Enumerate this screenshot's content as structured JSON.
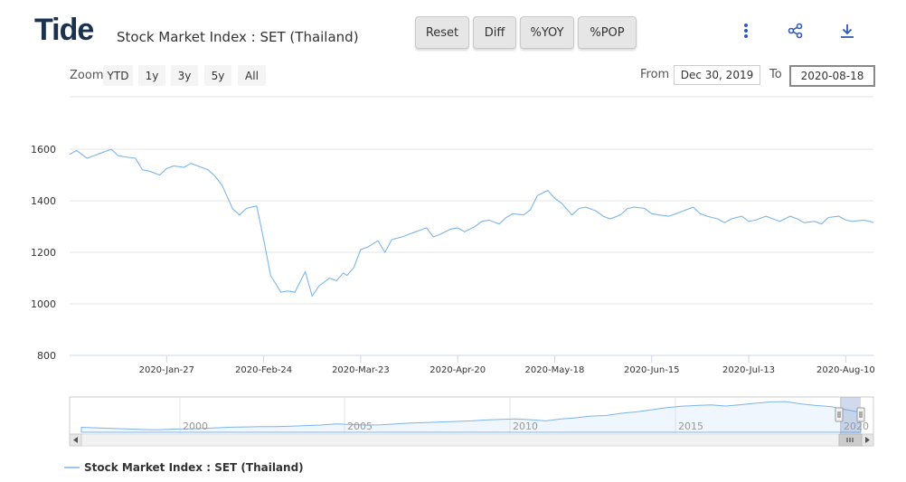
{
  "header": {
    "logo": "Tide",
    "title": "Stock Market Index : SET (Thailand)",
    "buttons": {
      "reset": "Reset",
      "diff": "Diff",
      "yoy": "%YOY",
      "pop": "%POP"
    }
  },
  "zoom": {
    "label": "Zoom",
    "options": [
      "YTD",
      "1y",
      "3y",
      "5y",
      "All"
    ]
  },
  "range": {
    "from_label": "From",
    "from_value": "Dec 30, 2019",
    "to_label": "To",
    "to_value": "2020-08-18"
  },
  "icons": {
    "menu": "vertical-dots-icon",
    "share": "share-icon",
    "download": "download-icon"
  },
  "colors": {
    "series": "#7cb5ec",
    "grid": "#e6e6e6",
    "navigator_mask": "rgba(102,133,194,0.3)"
  },
  "chart_data": {
    "type": "line",
    "title": "",
    "xlabel": "",
    "ylabel": "",
    "ylim": [
      800,
      1600
    ],
    "yticks": [
      800,
      1000,
      1200,
      1400,
      1600
    ],
    "x_tick_labels": [
      "2020-Jan-27",
      "2020-Feb-24",
      "2020-Mar-23",
      "2020-Apr-20",
      "2020-May-18",
      "2020-Jun-15",
      "2020-Jul-13",
      "2020-Aug-10"
    ],
    "x_tick_offsets_days": [
      28,
      56,
      84,
      112,
      140,
      168,
      196,
      224
    ],
    "series": [
      {
        "name": "Stock Market Index : SET (Thailand)",
        "x_days": [
          0,
          2,
          5,
          7,
          9,
          12,
          14,
          16,
          19,
          21,
          23,
          26,
          28,
          30,
          33,
          35,
          37,
          40,
          42,
          44,
          47,
          49,
          51,
          54,
          56,
          58,
          61,
          63,
          65,
          68,
          70,
          72,
          75,
          77,
          79,
          80,
          82,
          84,
          86,
          89,
          91,
          93,
          96,
          98,
          100,
          103,
          105,
          107,
          110,
          112,
          114,
          117,
          119,
          121,
          124,
          126,
          128,
          131,
          133,
          135,
          138,
          140,
          142,
          145,
          147,
          149,
          152,
          154,
          156,
          159,
          161,
          163,
          166,
          168,
          170,
          173,
          175,
          177,
          180,
          182,
          184,
          187,
          189,
          191,
          194,
          196,
          198,
          201,
          203,
          205,
          208,
          210,
          212,
          215,
          217,
          219,
          222,
          224,
          226,
          229,
          231,
          232
        ],
        "values": [
          1580,
          1595,
          1565,
          1575,
          1585,
          1600,
          1575,
          1570,
          1565,
          1520,
          1515,
          1500,
          1525,
          1535,
          1530,
          1545,
          1535,
          1520,
          1495,
          1460,
          1370,
          1345,
          1370,
          1380,
          1250,
          1110,
          1045,
          1050,
          1045,
          1125,
          1030,
          1070,
          1100,
          1090,
          1120,
          1110,
          1140,
          1210,
          1220,
          1245,
          1200,
          1250,
          1260,
          1270,
          1280,
          1295,
          1260,
          1270,
          1290,
          1295,
          1280,
          1300,
          1320,
          1325,
          1310,
          1335,
          1350,
          1345,
          1365,
          1420,
          1440,
          1410,
          1390,
          1345,
          1370,
          1375,
          1360,
          1340,
          1330,
          1345,
          1370,
          1375,
          1370,
          1350,
          1345,
          1340,
          1350,
          1360,
          1375,
          1350,
          1340,
          1330,
          1315,
          1330,
          1340,
          1320,
          1325,
          1340,
          1330,
          1320,
          1340,
          1330,
          1315,
          1320,
          1310,
          1335,
          1340,
          1325,
          1320,
          1325,
          1320,
          1315
        ]
      }
    ],
    "navigator": {
      "x_labels": [
        "2000",
        "2005",
        "2010",
        "2015",
        "2020"
      ],
      "values": [
        780,
        760,
        740,
        720,
        700,
        690,
        710,
        720,
        735,
        760,
        780,
        790,
        800,
        805,
        820,
        840,
        860,
        900,
        880,
        860,
        870,
        900,
        930,
        950,
        970,
        990,
        1010,
        1040,
        1060,
        1080,
        1050,
        1010,
        1080,
        1120,
        1180,
        1200,
        1280,
        1330,
        1400,
        1480,
        1530,
        1560,
        1580,
        1540,
        1590,
        1640,
        1690,
        1700,
        1620,
        1560,
        1520,
        1410,
        1320
      ]
    }
  }
}
